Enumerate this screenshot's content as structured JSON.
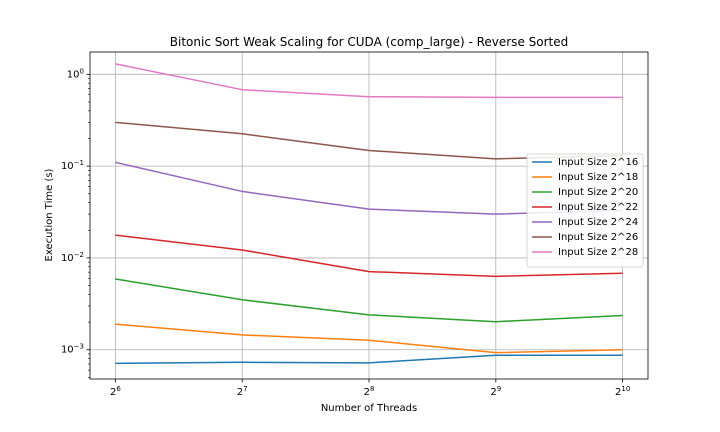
{
  "chart_data": {
    "type": "line",
    "title": "Bitonic Sort Weak Scaling for CUDA (comp_large) - Reverse Sorted",
    "xlabel": "Number of Threads",
    "ylabel": "Execution Time (s)",
    "x_scale": "log2",
    "y_scale": "log10",
    "x": [
      64,
      128,
      256,
      512,
      1024
    ],
    "x_tick_labels": [
      {
        "base": "2",
        "exp": "6"
      },
      {
        "base": "2",
        "exp": "7"
      },
      {
        "base": "2",
        "exp": "8"
      },
      {
        "base": "2",
        "exp": "9"
      },
      {
        "base": "2",
        "exp": "10"
      }
    ],
    "y_ticks": [
      {
        "value": 0.001,
        "base": "10",
        "exp": "−3"
      },
      {
        "value": 0.01,
        "base": "10",
        "exp": "−2"
      },
      {
        "value": 0.1,
        "base": "10",
        "exp": "−1"
      },
      {
        "value": 1,
        "base": "10",
        "exp": "0"
      }
    ],
    "ylim": [
      0.00048,
      1.75
    ],
    "grid": true,
    "legend_position": "center-right",
    "series": [
      {
        "name": "Input Size 2^16",
        "color": "#1f77b4",
        "values": [
          0.00071,
          0.00073,
          0.00072,
          0.00087,
          0.00087
        ]
      },
      {
        "name": "Input Size 2^18",
        "color": "#ff7f0e",
        "values": [
          0.0019,
          0.00145,
          0.00127,
          0.00093,
          0.001
        ]
      },
      {
        "name": "Input Size 2^20",
        "color": "#2ca02c",
        "values": [
          0.0059,
          0.0035,
          0.0024,
          0.00202,
          0.00236
        ]
      },
      {
        "name": "Input Size 2^22",
        "color": "#d62728",
        "values": [
          0.0177,
          0.0122,
          0.0071,
          0.0063,
          0.0068
        ]
      },
      {
        "name": "Input Size 2^24",
        "color": "#9467bd",
        "values": [
          0.11,
          0.053,
          0.034,
          0.03,
          0.033
        ]
      },
      {
        "name": "Input Size 2^26",
        "color": "#8c564b",
        "values": [
          0.3,
          0.225,
          0.148,
          0.12,
          0.13
        ]
      },
      {
        "name": "Input Size 2^28",
        "color": "#e377c2",
        "values": [
          1.3,
          0.68,
          0.57,
          0.56,
          0.56
        ]
      }
    ]
  }
}
